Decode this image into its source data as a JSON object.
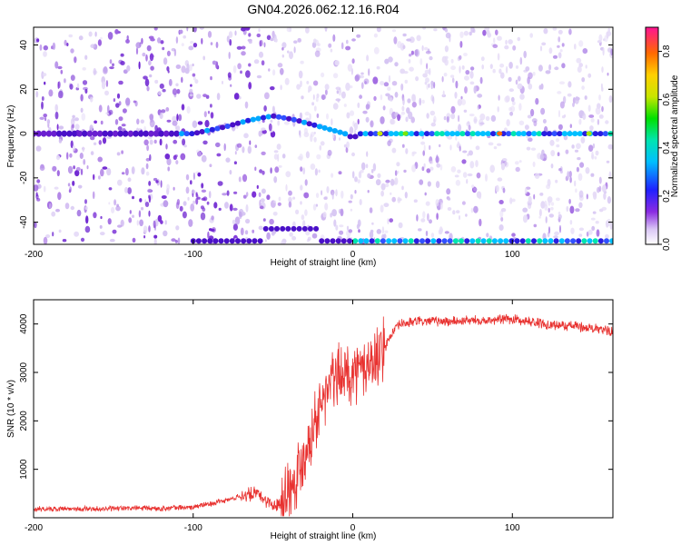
{
  "title": "GN04.2026.062.12.16.R04",
  "chart_data": [
    {
      "type": "heatmap",
      "name": "spectrogram",
      "xlabel": "Height of straight line (km)",
      "ylabel": "Frequency (Hz)",
      "xlim": [
        -200,
        163
      ],
      "ylim": [
        -50,
        48
      ],
      "xticks": [
        -200,
        -100,
        0,
        100
      ],
      "xtick_labels": [
        "-200",
        "-100",
        "0",
        "100"
      ],
      "yticks": [
        -40,
        -20,
        0,
        20,
        40
      ],
      "ytick_labels": [
        "-40",
        "-20",
        "0",
        "20",
        "40"
      ],
      "colorbar": {
        "label": "Normalized spectral amplitude",
        "range": [
          0,
          0.9
        ],
        "ticks": [
          0.0,
          0.2,
          0.4,
          0.6,
          0.8
        ],
        "tick_labels": [
          "0.0",
          "0.2",
          "0.4",
          "0.6",
          "0.8"
        ]
      },
      "signal_ridge": [
        {
          "x": -200,
          "y": 0
        },
        {
          "x": -100,
          "y": 0
        },
        {
          "x": -80,
          "y": 3
        },
        {
          "x": -65,
          "y": 6
        },
        {
          "x": -50,
          "y": 8
        },
        {
          "x": -35,
          "y": 6
        },
        {
          "x": -20,
          "y": 3
        },
        {
          "x": -5,
          "y": 0
        },
        {
          "x": 0,
          "y": -2
        },
        {
          "x": 5,
          "y": 0
        },
        {
          "x": 163,
          "y": 0
        }
      ]
    },
    {
      "type": "line",
      "name": "snr",
      "xlabel": "Height of straight line (km)",
      "ylabel": "SNR (10 * v/v)",
      "xlim": [
        -200,
        163
      ],
      "ylim": [
        0,
        4500
      ],
      "xticks": [
        -200,
        -100,
        0,
        100
      ],
      "xtick_labels": [
        "-200",
        "-100",
        "0",
        "100"
      ],
      "yticks": [
        1000,
        2000,
        3000,
        4000
      ],
      "ytick_labels": [
        "1000",
        "2000",
        "3000",
        "4000"
      ],
      "color": "#e8312f",
      "series": [
        {
          "name": "SNR",
          "x": [
            -200,
            -180,
            -160,
            -140,
            -120,
            -100,
            -90,
            -80,
            -70,
            -60,
            -50,
            -45,
            -40,
            -35,
            -30,
            -25,
            -20,
            -15,
            -10,
            -5,
            0,
            5,
            10,
            15,
            20,
            25,
            30,
            40,
            60,
            80,
            100,
            120,
            140,
            163
          ],
          "y": [
            180,
            190,
            180,
            200,
            190,
            220,
            280,
            350,
            450,
            500,
            250,
            350,
            600,
            900,
            1400,
            1900,
            2300,
            2700,
            2900,
            3000,
            3000,
            3050,
            3150,
            3300,
            3500,
            3850,
            4000,
            4050,
            4050,
            4080,
            4100,
            4000,
            3950,
            3850
          ]
        }
      ]
    }
  ]
}
